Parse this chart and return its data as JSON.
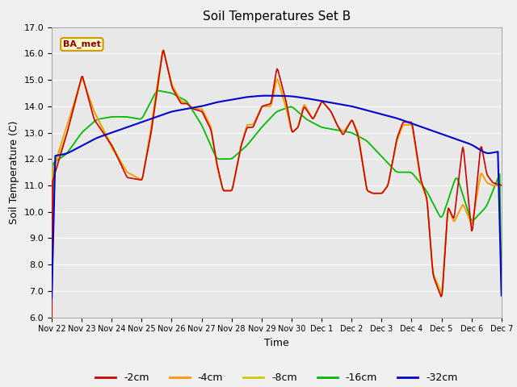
{
  "title": "Soil Temperatures Set B",
  "xlabel": "Time",
  "ylabel": "Soil Temperature (C)",
  "ylim": [
    6.0,
    17.0
  ],
  "yticks": [
    6.0,
    7.0,
    8.0,
    9.0,
    10.0,
    11.0,
    12.0,
    13.0,
    14.0,
    15.0,
    16.0,
    17.0
  ],
  "series_colors": {
    "-2cm": "#cc0000",
    "-4cm": "#ff9900",
    "-8cm": "#cccc00",
    "-16cm": "#00bb00",
    "-32cm": "#0000cc"
  },
  "legend_label": "BA_met",
  "plot_bg_color": "#e8e8e8",
  "fig_bg_color": "#f0f0f0",
  "xtick_labels": [
    "Nov 22",
    "Nov 23",
    "Nov 24",
    "Nov 25",
    "Nov 26",
    "Nov 27",
    "Nov 28",
    "Nov 29",
    "Nov 30",
    "Dec 1",
    "Dec 2",
    "Dec 3",
    "Dec 4",
    "Dec 5",
    "Dec 6",
    "Dec 7"
  ],
  "t2cm_x": [
    0.0,
    0.5,
    1.0,
    1.4,
    2.0,
    2.5,
    3.0,
    3.3,
    3.5,
    3.7,
    4.0,
    4.3,
    4.5,
    4.7,
    5.0,
    5.3,
    5.5,
    5.7,
    6.0,
    6.3,
    6.5,
    6.7,
    7.0,
    7.3,
    7.5,
    7.8,
    8.0,
    8.2,
    8.4,
    8.7,
    9.0,
    9.3,
    9.5,
    9.7,
    10.0,
    10.2,
    10.5,
    10.7,
    11.0,
    11.2,
    11.5,
    11.7,
    12.0,
    12.3,
    12.5,
    12.7,
    13.0,
    13.2,
    13.4,
    13.7,
    14.0,
    14.3,
    14.5,
    14.7,
    15.0
  ],
  "t2cm_y": [
    11.1,
    13.0,
    15.2,
    13.5,
    12.5,
    11.3,
    11.2,
    13.0,
    14.6,
    16.2,
    14.7,
    14.1,
    14.1,
    13.9,
    13.8,
    13.1,
    11.8,
    10.8,
    10.8,
    12.5,
    13.2,
    13.2,
    14.0,
    14.1,
    15.5,
    14.2,
    13.0,
    13.2,
    14.0,
    13.5,
    14.2,
    13.8,
    13.3,
    12.9,
    13.5,
    12.9,
    10.8,
    10.7,
    10.7,
    11.0,
    12.8,
    13.4,
    13.4,
    11.2,
    10.5,
    7.6,
    6.7,
    10.2,
    9.7,
    12.6,
    9.1,
    12.6,
    11.4,
    11.1,
    11.0
  ],
  "t4cm_x": [
    0.0,
    0.5,
    1.0,
    1.4,
    2.0,
    2.5,
    3.0,
    3.3,
    3.5,
    3.7,
    4.0,
    4.3,
    4.5,
    4.7,
    5.0,
    5.3,
    5.5,
    5.7,
    6.0,
    6.3,
    6.5,
    6.7,
    7.0,
    7.3,
    7.5,
    7.8,
    8.0,
    8.2,
    8.4,
    8.7,
    9.0,
    9.3,
    9.5,
    9.7,
    10.0,
    10.2,
    10.5,
    10.7,
    11.0,
    11.2,
    11.5,
    11.7,
    12.0,
    12.3,
    12.5,
    12.7,
    13.0,
    13.2,
    13.4,
    13.7,
    14.0,
    14.3,
    14.5,
    14.7,
    15.0
  ],
  "t4cm_y": [
    11.5,
    13.3,
    15.1,
    13.8,
    12.4,
    11.5,
    11.2,
    13.2,
    14.8,
    16.2,
    14.8,
    14.2,
    14.1,
    13.9,
    13.9,
    13.2,
    11.7,
    10.8,
    10.8,
    12.5,
    13.3,
    13.3,
    14.0,
    14.0,
    15.1,
    14.0,
    13.0,
    13.2,
    14.1,
    13.5,
    14.2,
    13.8,
    13.3,
    13.0,
    13.5,
    13.0,
    10.8,
    10.7,
    10.7,
    11.0,
    12.7,
    13.3,
    13.3,
    11.1,
    10.5,
    7.6,
    6.7,
    10.2,
    9.6,
    10.3,
    9.5,
    11.5,
    11.1,
    11.0,
    11.0
  ],
  "t8cm_x": [
    0.0,
    0.5,
    1.0,
    1.4,
    2.0,
    2.5,
    3.0,
    3.3,
    3.5,
    3.7,
    4.0,
    4.3,
    4.5,
    4.7,
    5.0,
    5.3,
    5.5,
    5.7,
    6.0,
    6.3,
    6.5,
    6.7,
    7.0,
    7.3,
    7.5,
    7.8,
    8.0,
    8.2,
    8.4,
    8.7,
    9.0,
    9.3,
    9.5,
    9.7,
    10.0,
    10.2,
    10.5,
    10.7,
    11.0,
    11.2,
    11.5,
    11.7,
    12.0,
    12.3,
    12.5,
    12.7,
    13.0,
    13.2,
    13.4,
    13.7,
    14.0,
    14.3,
    14.5,
    14.7,
    15.0
  ],
  "t8cm_y": [
    11.5,
    13.0,
    15.1,
    13.8,
    12.5,
    11.5,
    11.2,
    13.0,
    14.5,
    16.2,
    14.8,
    14.2,
    14.1,
    13.9,
    13.9,
    13.2,
    11.7,
    10.8,
    10.8,
    12.5,
    13.3,
    13.3,
    14.0,
    14.0,
    15.1,
    13.9,
    13.0,
    13.2,
    14.1,
    13.5,
    14.2,
    13.8,
    13.3,
    13.0,
    13.5,
    13.0,
    10.8,
    10.7,
    10.7,
    11.0,
    12.7,
    13.3,
    13.3,
    11.1,
    10.5,
    7.7,
    6.9,
    10.2,
    9.6,
    10.3,
    9.5,
    11.5,
    11.1,
    11.0,
    11.0
  ],
  "t16cm_x": [
    0.0,
    0.5,
    1.0,
    1.5,
    2.0,
    2.5,
    3.0,
    3.5,
    4.0,
    4.5,
    5.0,
    5.5,
    6.0,
    6.5,
    7.0,
    7.5,
    8.0,
    8.5,
    9.0,
    9.5,
    10.0,
    10.5,
    11.0,
    11.5,
    12.0,
    12.5,
    13.0,
    13.5,
    14.0,
    14.5,
    15.0
  ],
  "t16cm_y": [
    11.8,
    12.2,
    13.0,
    13.5,
    13.6,
    13.6,
    13.5,
    14.6,
    14.5,
    14.2,
    13.3,
    12.0,
    12.0,
    12.5,
    13.2,
    13.8,
    14.0,
    13.5,
    13.2,
    13.1,
    13.0,
    12.7,
    12.1,
    11.5,
    11.5,
    10.8,
    9.7,
    11.4,
    9.6,
    10.2,
    11.6
  ],
  "t32cm_x": [
    0.0,
    0.5,
    1.0,
    1.5,
    2.0,
    2.5,
    3.0,
    3.5,
    4.0,
    4.5,
    5.0,
    5.5,
    6.0,
    6.5,
    7.0,
    7.5,
    8.0,
    8.5,
    9.0,
    9.5,
    10.0,
    10.5,
    11.0,
    11.5,
    12.0,
    12.5,
    13.0,
    13.5,
    14.0,
    14.5,
    15.0
  ],
  "t32cm_y": [
    12.1,
    12.2,
    12.5,
    12.8,
    13.0,
    13.2,
    13.4,
    13.6,
    13.8,
    13.9,
    14.0,
    14.15,
    14.25,
    14.35,
    14.4,
    14.4,
    14.38,
    14.3,
    14.2,
    14.1,
    14.0,
    13.85,
    13.7,
    13.55,
    13.35,
    13.15,
    12.95,
    12.75,
    12.55,
    12.2,
    12.3
  ]
}
